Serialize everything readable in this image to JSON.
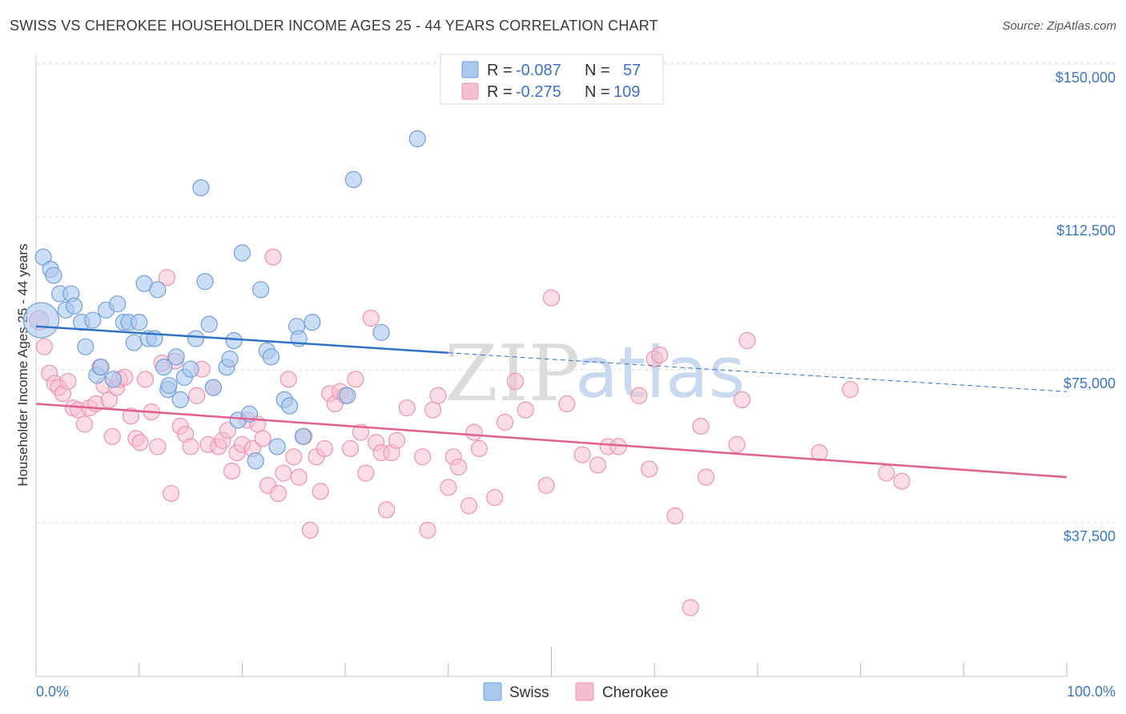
{
  "header": {
    "title": "SWISS VS CHEROKEE HOUSEHOLDER INCOME AGES 25 - 44 YEARS CORRELATION CHART",
    "source": "Source: ZipAtlas.com"
  },
  "watermark": {
    "zip": "ZIP",
    "atlas": "atlas"
  },
  "legend": {
    "swiss": {
      "r_label": "R =",
      "r_value": "-0.087",
      "n_label": "N =",
      "n_value": "57"
    },
    "cherokee": {
      "r_label": "R =",
      "r_value": "-0.275",
      "n_label": "N =",
      "n_value": "109"
    }
  },
  "bottom_legend": {
    "swiss": "Swiss",
    "cherokee": "Cherokee"
  },
  "colors": {
    "swiss_fill": "#aac8ee",
    "swiss_stroke": "#6fa0dc",
    "swiss_line": "#2f72c8",
    "cherokee_fill": "#f6bfd0",
    "cherokee_stroke": "#ee93b2",
    "cherokee_line": "#e2608e",
    "tick_text": "#3b78c9"
  },
  "chart_data": {
    "type": "scatter",
    "title": "SWISS VS CHEROKEE HOUSEHOLDER INCOME AGES 25 - 44 YEARS CORRELATION CHART",
    "xlabel": "",
    "ylabel": "Householder Income Ages 25 - 44 years",
    "xlim": [
      0,
      100
    ],
    "ylim": [
      0,
      155000
    ],
    "x_tick_labels": [
      "0.0%",
      "100.0%"
    ],
    "y_ticks": [
      37500,
      75000,
      112500,
      150000
    ],
    "y_tick_labels": [
      "$37,500",
      "$75,000",
      "$112,500",
      "$150,000"
    ],
    "grid": true,
    "legend_position": "top-center",
    "series": [
      {
        "name": "Swiss",
        "r": -0.087,
        "n": 57,
        "trend": {
          "x0": 0,
          "y0": 89000,
          "x1": 40,
          "y1": 82500,
          "dashed_to_x": 100,
          "dashed_to_y": 73000
        },
        "points": [
          [
            0.5,
            90500
          ],
          [
            0.7,
            106000
          ],
          [
            1.4,
            103000
          ],
          [
            1.7,
            101500
          ],
          [
            2.3,
            97000
          ],
          [
            2.9,
            93000
          ],
          [
            3.4,
            97000
          ],
          [
            3.7,
            94000
          ],
          [
            4.4,
            90000
          ],
          [
            4.8,
            84000
          ],
          [
            5.5,
            90500
          ],
          [
            5.9,
            77000
          ],
          [
            6.3,
            79000
          ],
          [
            6.8,
            93000
          ],
          [
            7.5,
            76000
          ],
          [
            7.9,
            94500
          ],
          [
            8.5,
            90000
          ],
          [
            9.0,
            90000
          ],
          [
            9.5,
            85000
          ],
          [
            10.0,
            90000
          ],
          [
            10.5,
            99500
          ],
          [
            10.9,
            86000
          ],
          [
            11.5,
            86000
          ],
          [
            11.8,
            98000
          ],
          [
            12.4,
            79000
          ],
          [
            12.8,
            73500
          ],
          [
            12.9,
            74500
          ],
          [
            13.6,
            81500
          ],
          [
            14.0,
            71000
          ],
          [
            14.4,
            76500
          ],
          [
            15.0,
            78500
          ],
          [
            15.5,
            86000
          ],
          [
            16.0,
            123000
          ],
          [
            16.4,
            100000
          ],
          [
            16.8,
            89500
          ],
          [
            17.2,
            74000
          ],
          [
            18.5,
            79000
          ],
          [
            18.8,
            81000
          ],
          [
            19.2,
            85500
          ],
          [
            19.6,
            66000
          ],
          [
            20.0,
            107000
          ],
          [
            20.7,
            67500
          ],
          [
            21.3,
            56000
          ],
          [
            21.8,
            98000
          ],
          [
            22.4,
            83000
          ],
          [
            22.8,
            81500
          ],
          [
            23.4,
            59500
          ],
          [
            24.1,
            71000
          ],
          [
            24.6,
            69500
          ],
          [
            25.3,
            89000
          ],
          [
            25.5,
            86000
          ],
          [
            25.9,
            62000
          ],
          [
            26.8,
            90000
          ],
          [
            30.2,
            72000
          ],
          [
            30.8,
            125000
          ],
          [
            33.5,
            87500
          ],
          [
            37.0,
            135000
          ]
        ]
      },
      {
        "name": "Cherokee",
        "r": -0.275,
        "n": 109,
        "trend": {
          "x0": 0,
          "y0": 70000,
          "x1": 100,
          "y1": 52000
        },
        "points": [
          [
            0.3,
            90500
          ],
          [
            0.8,
            84000
          ],
          [
            1.3,
            77500
          ],
          [
            1.8,
            75000
          ],
          [
            2.2,
            74000
          ],
          [
            2.6,
            72500
          ],
          [
            3.1,
            75500
          ],
          [
            3.6,
            69000
          ],
          [
            4.1,
            68500
          ],
          [
            4.7,
            65000
          ],
          [
            5.2,
            69000
          ],
          [
            5.8,
            70000
          ],
          [
            6.2,
            79000
          ],
          [
            6.6,
            74500
          ],
          [
            7.1,
            71000
          ],
          [
            7.4,
            62000
          ],
          [
            7.8,
            74000
          ],
          [
            8.1,
            76000
          ],
          [
            8.6,
            76500
          ],
          [
            9.2,
            67000
          ],
          [
            9.7,
            61500
          ],
          [
            10.1,
            60500
          ],
          [
            10.6,
            76000
          ],
          [
            11.2,
            68000
          ],
          [
            11.8,
            59500
          ],
          [
            12.2,
            80000
          ],
          [
            12.7,
            101000
          ],
          [
            13.1,
            48000
          ],
          [
            13.5,
            80500
          ],
          [
            14.0,
            64500
          ],
          [
            14.5,
            62500
          ],
          [
            15.0,
            59500
          ],
          [
            15.6,
            72000
          ],
          [
            16.1,
            78500
          ],
          [
            16.7,
            60000
          ],
          [
            17.2,
            74000
          ],
          [
            17.7,
            59500
          ],
          [
            18.1,
            61000
          ],
          [
            18.6,
            63500
          ],
          [
            19.0,
            53500
          ],
          [
            19.5,
            58000
          ],
          [
            20.0,
            60000
          ],
          [
            20.5,
            66000
          ],
          [
            21.0,
            59000
          ],
          [
            21.5,
            65000
          ],
          [
            22.0,
            61500
          ],
          [
            22.5,
            50000
          ],
          [
            23.0,
            106000
          ],
          [
            23.5,
            48000
          ],
          [
            24.0,
            53000
          ],
          [
            24.5,
            76000
          ],
          [
            25.0,
            57000
          ],
          [
            25.5,
            52000
          ],
          [
            26.0,
            62000
          ],
          [
            26.6,
            39000
          ],
          [
            27.2,
            57000
          ],
          [
            27.6,
            48500
          ],
          [
            28.0,
            59000
          ],
          [
            28.5,
            72500
          ],
          [
            29.0,
            70000
          ],
          [
            29.5,
            73000
          ],
          [
            30.0,
            72000
          ],
          [
            30.5,
            59000
          ],
          [
            31.0,
            76000
          ],
          [
            31.5,
            63000
          ],
          [
            32.0,
            53000
          ],
          [
            32.5,
            91000
          ],
          [
            33.0,
            60500
          ],
          [
            33.5,
            58000
          ],
          [
            34.0,
            44000
          ],
          [
            34.5,
            58000
          ],
          [
            35.0,
            61000
          ],
          [
            36.0,
            69000
          ],
          [
            37.5,
            57000
          ],
          [
            38.0,
            39000
          ],
          [
            38.5,
            68500
          ],
          [
            39.0,
            72000
          ],
          [
            40.0,
            49500
          ],
          [
            40.5,
            57000
          ],
          [
            41.0,
            54500
          ],
          [
            42.0,
            45000
          ],
          [
            42.5,
            63000
          ],
          [
            43.0,
            59000
          ],
          [
            44.5,
            47000
          ],
          [
            45.5,
            65500
          ],
          [
            46.5,
            75500
          ],
          [
            47.5,
            68500
          ],
          [
            49.5,
            50000
          ],
          [
            50.0,
            96000
          ],
          [
            51.5,
            70000
          ],
          [
            53.0,
            57500
          ],
          [
            54.5,
            55000
          ],
          [
            55.5,
            59500
          ],
          [
            56.5,
            59500
          ],
          [
            58.5,
            72000
          ],
          [
            59.5,
            54000
          ],
          [
            60.0,
            81000
          ],
          [
            60.5,
            82000
          ],
          [
            62.0,
            42500
          ],
          [
            63.5,
            20000
          ],
          [
            64.5,
            64500
          ],
          [
            65.0,
            52000
          ],
          [
            68.5,
            71000
          ],
          [
            69.0,
            85500
          ],
          [
            68.0,
            60000
          ],
          [
            76.0,
            58000
          ],
          [
            79.0,
            73500
          ],
          [
            82.5,
            53000
          ],
          [
            84.0,
            51000
          ]
        ]
      }
    ]
  }
}
